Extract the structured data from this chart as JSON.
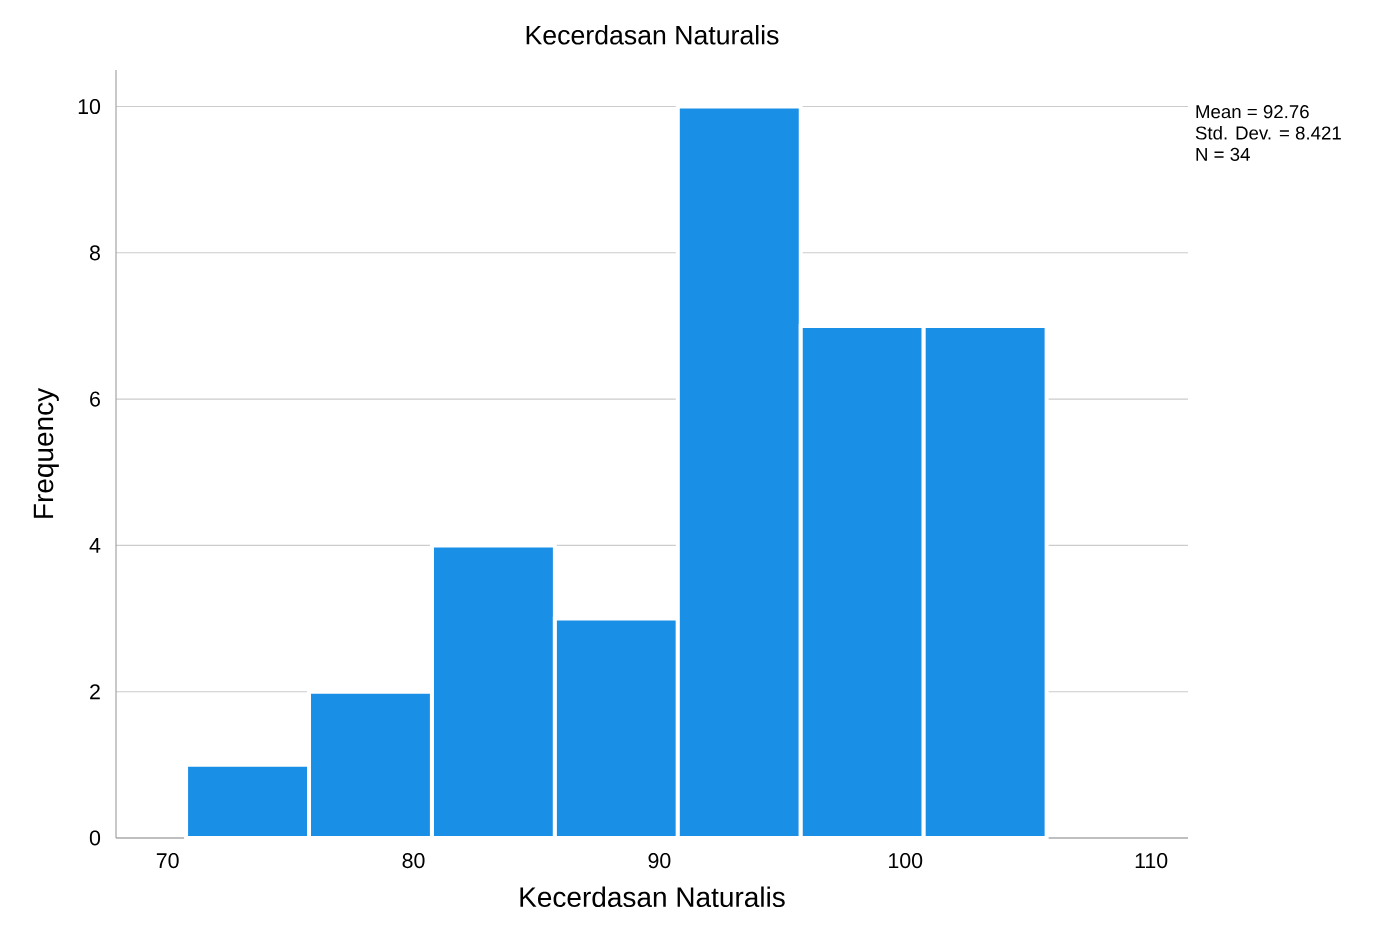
{
  "chart_data": {
    "type": "histogram",
    "title": "Kecerdasan Naturalis",
    "xlabel": "Kecerdasan Naturalis",
    "ylabel": "Frequency",
    "bins": [
      70.75,
      75.75,
      80.75,
      85.75,
      90.75,
      95.75,
      100.75,
      105.75
    ],
    "values": [
      1,
      2,
      4,
      3,
      10,
      7,
      7
    ],
    "color": "#1a8fe6",
    "xlim": [
      67.9,
      111.5
    ],
    "xticks": [
      70,
      80,
      90,
      100,
      110
    ],
    "ylim": [
      0,
      10.5
    ],
    "yticks": [
      0,
      2,
      4,
      6,
      8,
      10
    ],
    "grid": "y",
    "annotations": [
      "Mean = 92.76",
      "Std. Dev. = 8.421",
      "N = 34"
    ]
  }
}
